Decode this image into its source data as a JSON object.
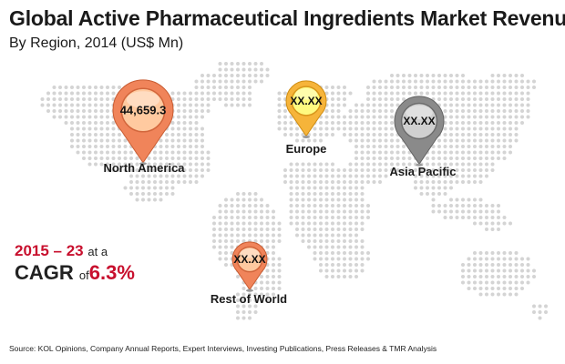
{
  "header": {
    "title": "Global Active Pharmaceutical Ingredients Market Revenue",
    "subtitle": "By Region, 2014 (US$ Mn)"
  },
  "regions": [
    {
      "name": "North America",
      "value": "44,659.3",
      "color": "#f0845a"
    },
    {
      "name": "Europe",
      "value": "XX.XX",
      "color": "#f6b43a"
    },
    {
      "name": "Asia Pacific",
      "value": "XX.XX",
      "color": "#8a8a8a"
    },
    {
      "name": "Rest of World",
      "value": "XX.XX",
      "color": "#f0845a"
    }
  ],
  "cagr": {
    "period": "2015 – 23",
    "at_a": "at a",
    "label": "CAGR",
    "of": "of",
    "rate": "6.3%",
    "color": "#c8102e"
  },
  "source": "Source: KOL Opinions, Company Annual Reports, Expert Interviews, Investing Publications, Press Releases & TMR Analysis"
}
